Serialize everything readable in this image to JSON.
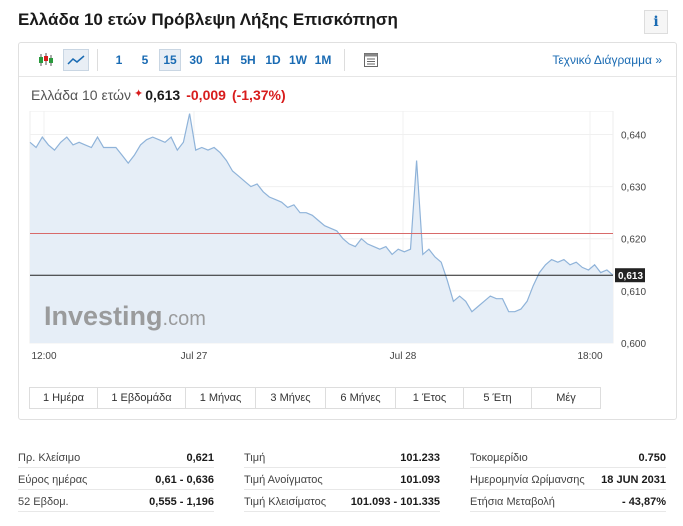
{
  "page": {
    "title": "Ελλάδα 10 ετών Πρόβλεψη Λήξης Επισκόπηση",
    "info_icon": "i"
  },
  "toolbar": {
    "periods": [
      "1",
      "5",
      "15",
      "30",
      "1H",
      "5H",
      "1D",
      "1W",
      "1M"
    ],
    "active_period": "15",
    "technical_link": "Τεχνικό Διάγραμμα »",
    "icons": [
      "candlestick-icon",
      "line-chart-icon",
      "table-icon"
    ]
  },
  "quote": {
    "name": "Ελλάδα 10 ετών",
    "last": "0,613",
    "change": "-0,009",
    "change_pct": "(-1,37%)"
  },
  "chart_data": {
    "type": "area",
    "watermark_brand": "Investing",
    "watermark_domain": ".com",
    "x_ticks": [
      "12:00",
      "Jul 27",
      "Jul 28",
      "18:00"
    ],
    "y_ticks": [
      "0,640",
      "0,630",
      "0,620",
      "0,610",
      "0,600"
    ],
    "ylim": [
      0.6,
      0.6445
    ],
    "prev_close_line": 0.621,
    "last_value": 0.613,
    "last_label": "0,613",
    "values": [
      0.6385,
      0.6375,
      0.6395,
      0.638,
      0.637,
      0.6385,
      0.6395,
      0.638,
      0.6385,
      0.638,
      0.6375,
      0.6395,
      0.6375,
      0.6375,
      0.6375,
      0.636,
      0.6345,
      0.636,
      0.638,
      0.639,
      0.6395,
      0.639,
      0.6385,
      0.6395,
      0.637,
      0.6385,
      0.644,
      0.637,
      0.6375,
      0.637,
      0.6375,
      0.6365,
      0.635,
      0.633,
      0.632,
      0.631,
      0.63,
      0.6305,
      0.629,
      0.628,
      0.6275,
      0.627,
      0.626,
      0.6265,
      0.625,
      0.625,
      0.6245,
      0.6235,
      0.6225,
      0.622,
      0.6215,
      0.62,
      0.619,
      0.6185,
      0.62,
      0.619,
      0.6185,
      0.618,
      0.6185,
      0.617,
      0.618,
      0.6175,
      0.618,
      0.635,
      0.617,
      0.618,
      0.6165,
      0.6155,
      0.612,
      0.608,
      0.609,
      0.608,
      0.606,
      0.607,
      0.608,
      0.609,
      0.6085,
      0.6085,
      0.606,
      0.606,
      0.6065,
      0.608,
      0.611,
      0.6135,
      0.615,
      0.616,
      0.6155,
      0.616,
      0.615,
      0.6155,
      0.6145,
      0.614,
      0.615,
      0.6135,
      0.614,
      0.613
    ]
  },
  "ranges": [
    "1 Ημέρα",
    "1 Εβδομάδα",
    "1 Μήνας",
    "3 Μήνες",
    "6 Μήνες",
    "1 Έτος",
    "5 Έτη",
    "Μέγ"
  ],
  "stats": [
    {
      "label": "Πρ. Κλείσιμο",
      "value": "0,621"
    },
    {
      "label": "Εύρος ημέρας",
      "value": "0,61 - 0,636"
    },
    {
      "label": "52 Εβδομ.",
      "value": "0,555 - 1,196"
    },
    {
      "label": "Τιμή",
      "value": "101.233"
    },
    {
      "label": "Τιμή Ανοίγματος",
      "value": "101.093"
    },
    {
      "label": "Τιμή Κλεισίματος",
      "value": "101.093 - 101.335"
    },
    {
      "label": "Τοκομερίδιο",
      "value": "0.750"
    },
    {
      "label": "Ημερομηνία Ωρίμανσης",
      "value": "18 JUN 2031"
    },
    {
      "label": "Ετήσια Μεταβολή",
      "value": "- 43,87%"
    }
  ]
}
